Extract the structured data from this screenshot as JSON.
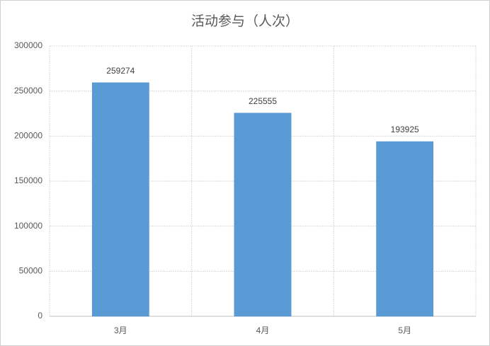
{
  "chart_data": {
    "type": "bar",
    "title": "活动参与（人次）",
    "categories": [
      "3月",
      "4月",
      "5月"
    ],
    "values": [
      259274,
      225555,
      193925
    ],
    "color": "#5b9bd5",
    "ylim": [
      0,
      300000
    ],
    "yticks": [
      0,
      50000,
      100000,
      150000,
      200000,
      250000,
      300000
    ],
    "grid": true
  }
}
